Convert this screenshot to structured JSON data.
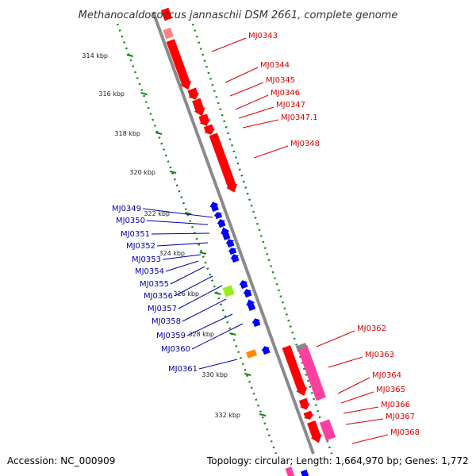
{
  "title": "Methanocaldococcus jannaschii DSM 2661, complete genome",
  "footer": {
    "accession": "Accession: NC_000909",
    "stats": "Topology: circular; Length: 1,664,970 bp; Genes: 1,772"
  },
  "colors": {
    "backbone": "#8a8a8a",
    "forward_gene": "#ff0000",
    "reverse_gene": "#0000ff",
    "ruler_dot": "#118811",
    "ruler_tick": "#118811",
    "pink_feature": "#ff3fa0",
    "green_feature": "#99ee22",
    "orange_feature": "#ff8800",
    "forward_label": "#dd0000",
    "reverse_label": "#0000aa"
  },
  "kbp_labels": [
    "314 kbp",
    "316 kbp",
    "318 kbp",
    "320 kbp",
    "322 kbp",
    "324 kbp",
    "326 kbp",
    "328 kbp",
    "330 kbp",
    "332 kbp"
  ],
  "forward_genes": [
    "MJ0343",
    "MJ0344",
    "MJ0345",
    "MJ0346",
    "MJ0347",
    "MJ0347.1",
    "MJ0348",
    "MJ0362",
    "MJ0363",
    "MJ0364",
    "MJ0365",
    "MJ0366",
    "MJ0367",
    "MJ0368"
  ],
  "reverse_genes": [
    "MJ0349",
    "MJ0350",
    "MJ0351",
    "MJ0352",
    "MJ0353",
    "MJ0354",
    "MJ0355",
    "MJ0356",
    "MJ0357",
    "MJ0358",
    "MJ0359",
    "MJ0360",
    "MJ0361"
  ]
}
